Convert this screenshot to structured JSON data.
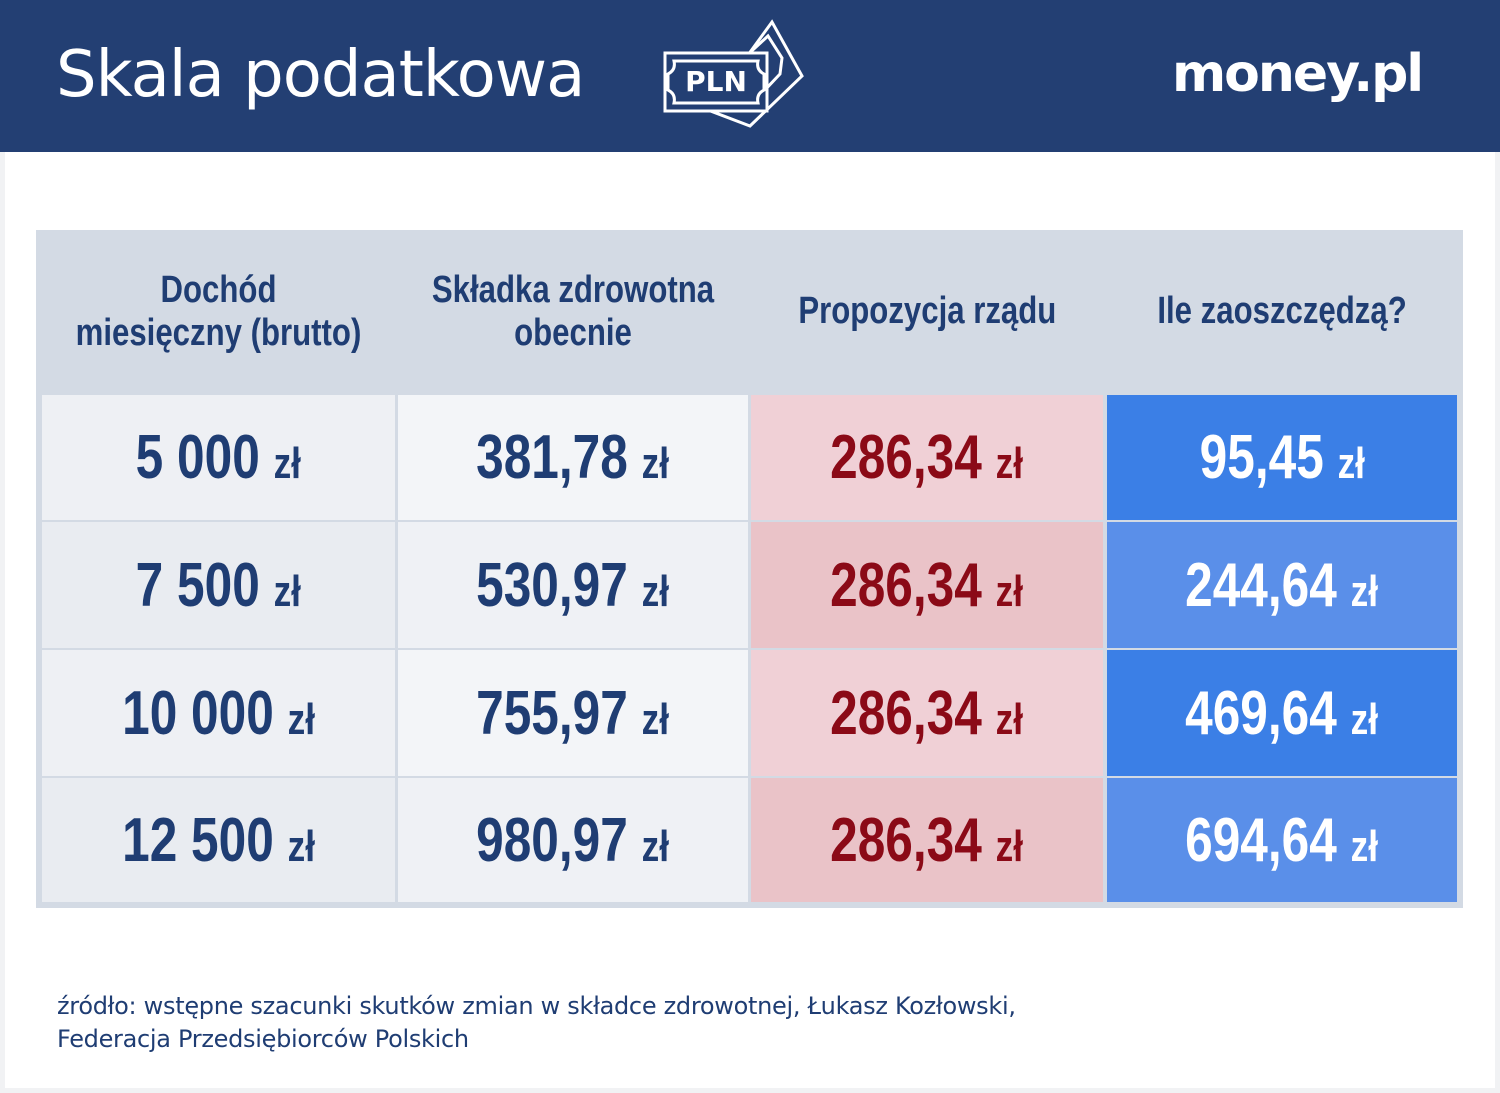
{
  "header": {
    "title": "Skala podatkowa",
    "icon": "banknote-pln-icon",
    "icon_text": "PLN",
    "logo": "money.pl"
  },
  "chart_data": {
    "type": "table",
    "columns": [
      "Dochód miesięczny (brutto)",
      "Składka zdrowotna obecnie",
      "Propozycja rządu",
      "Ile zaoszczędzą?"
    ],
    "unit": "zł",
    "rows": [
      [
        "5 000",
        "381,78",
        "286,34",
        "95,45"
      ],
      [
        "7 500",
        "530,97",
        "286,34",
        "244,64"
      ],
      [
        "10 000",
        "755,97",
        "286,34",
        "469,64"
      ],
      [
        "12 500",
        "980,97",
        "286,34",
        "694,64"
      ]
    ]
  },
  "colors": {
    "header_bg": "#233f73",
    "text_blue": "#1f3d73",
    "text_red": "#8b0a17",
    "savings_blue": "#3b7fe6",
    "proposal_pink": "#f0d0d6"
  },
  "source": {
    "line1": "źródło: wstępne szacunki skutków zmian w składce zdrowotnej, Łukasz Kozłowski,",
    "line2": "Federacja Przedsiębiorców Polskich"
  }
}
